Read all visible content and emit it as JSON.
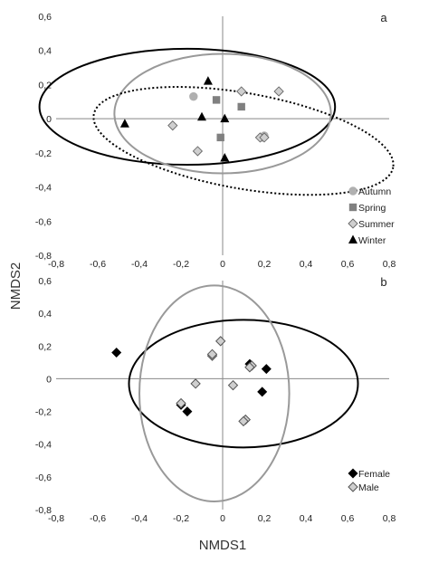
{
  "colors": {
    "autumn": "#b0b0b0",
    "spring": "#808080",
    "summer_fill": "#cfcfcf",
    "winter": "#000000",
    "female": "#000000",
    "male_fill": "#cfcfcf",
    "ellipse_black": "#000000",
    "ellipse_gray": "#999999"
  },
  "ylabel": "NMDS2",
  "xlabel": "NMDS1",
  "chart_data": [
    {
      "type": "scatter",
      "panel_label": "a",
      "xlim": [
        -0.8,
        0.8
      ],
      "ylim": [
        -0.8,
        0.6
      ],
      "x_ticks": [
        "-0,8",
        "-0,6",
        "-0,4",
        "-0,2",
        "0",
        "0,2",
        "0,4",
        "0,6",
        "0,8"
      ],
      "y_ticks": [
        "0,6",
        "0,4",
        "0,2",
        "0",
        "-0,2",
        "-0,4",
        "-0,6",
        "-0,8"
      ],
      "legend_position": "bottom-right",
      "series": [
        {
          "name": "Autumn",
          "marker": "circle",
          "points": [
            [
              -0.14,
              0.13
            ],
            [
              0.2,
              -0.1
            ],
            [
              0.19,
              -0.11
            ]
          ]
        },
        {
          "name": "Spring",
          "marker": "square",
          "points": [
            [
              -0.03,
              0.11
            ],
            [
              0.09,
              0.07
            ],
            [
              -0.01,
              -0.11
            ]
          ]
        },
        {
          "name": "Summer",
          "marker": "diamond",
          "points": [
            [
              0.09,
              0.16
            ],
            [
              0.27,
              0.16
            ],
            [
              -0.24,
              -0.04
            ],
            [
              -0.12,
              -0.19
            ],
            [
              0.18,
              -0.11
            ],
            [
              0.2,
              -0.11
            ]
          ]
        },
        {
          "name": "Winter",
          "marker": "triangle",
          "points": [
            [
              -0.07,
              0.22
            ],
            [
              -0.47,
              -0.03
            ],
            [
              -0.1,
              0.01
            ],
            [
              0.01,
              0.0
            ],
            [
              0.01,
              -0.23
            ]
          ]
        }
      ],
      "ellipses": [
        {
          "style": "solid-black",
          "center": [
            -0.17,
            0.07
          ],
          "radii": [
            0.71,
            0.34
          ],
          "rotation_deg": 0
        },
        {
          "style": "solid-gray",
          "center": [
            0.0,
            0.03
          ],
          "radii": [
            0.52,
            0.35
          ],
          "rotation_deg": 0
        },
        {
          "style": "dotted-black",
          "center": [
            0.1,
            -0.13
          ],
          "radii": [
            0.73,
            0.28
          ],
          "rotation_deg": 10
        }
      ]
    },
    {
      "type": "scatter",
      "panel_label": "b",
      "xlim": [
        -0.8,
        0.8
      ],
      "ylim": [
        -0.8,
        0.6
      ],
      "x_ticks": [
        "-0,8",
        "-0,6",
        "-0,4",
        "-0,2",
        "0",
        "0,2",
        "0,4",
        "0,6",
        "0,8"
      ],
      "y_ticks": [
        "0,6",
        "0,4",
        "0,2",
        "0",
        "-0,2",
        "-0,4",
        "-0,6",
        "-0,8"
      ],
      "legend_position": "bottom-right",
      "series": [
        {
          "name": "Female",
          "marker": "diamond-filled",
          "points": [
            [
              -0.51,
              0.16
            ],
            [
              0.13,
              0.09
            ],
            [
              0.21,
              0.06
            ],
            [
              0.19,
              -0.08
            ],
            [
              -0.17,
              -0.2
            ],
            [
              -0.2,
              -0.16
            ]
          ]
        },
        {
          "name": "Male",
          "marker": "diamond-open",
          "points": [
            [
              -0.01,
              0.23
            ],
            [
              -0.05,
              0.14
            ],
            [
              -0.05,
              0.15
            ],
            [
              0.14,
              0.08
            ],
            [
              0.13,
              0.07
            ],
            [
              -0.13,
              -0.03
            ],
            [
              0.05,
              -0.04
            ],
            [
              -0.2,
              -0.15
            ],
            [
              0.11,
              -0.25
            ],
            [
              0.1,
              -0.26
            ]
          ]
        }
      ],
      "ellipses": [
        {
          "style": "solid-black",
          "center": [
            0.1,
            -0.03
          ],
          "radii": [
            0.55,
            0.39
          ],
          "rotation_deg": 0
        },
        {
          "style": "solid-gray",
          "center": [
            -0.04,
            -0.09
          ],
          "radii": [
            0.36,
            0.66
          ],
          "rotation_deg": 0
        }
      ]
    }
  ]
}
